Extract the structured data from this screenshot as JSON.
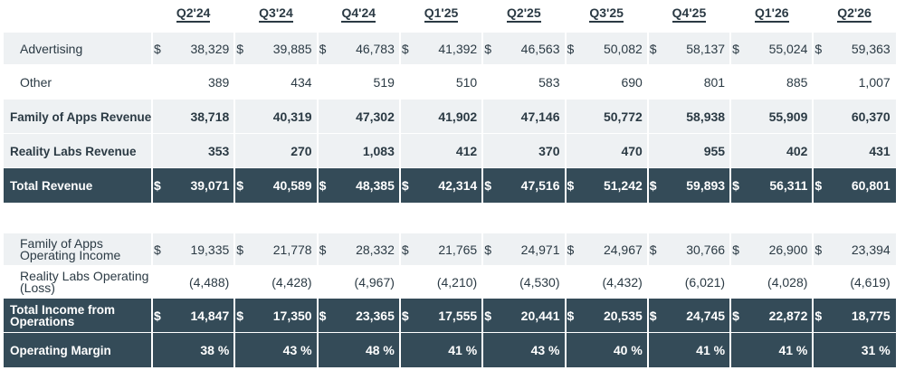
{
  "quarters": [
    "Q2'24",
    "Q3'24",
    "Q4'24",
    "Q1'25",
    "Q2'25",
    "Q3'25",
    "Q4'25",
    "Q1'26",
    "Q2'26"
  ],
  "currency_symbol": "$",
  "revenue_section": {
    "rows": [
      {
        "label": "Advertising",
        "style": "indent",
        "currency": true,
        "values": [
          "38,329",
          "39,885",
          "46,783",
          "41,392",
          "46,563",
          "50,082",
          "58,137",
          "55,024",
          "59,363"
        ]
      },
      {
        "label": "Other",
        "style": "indent",
        "currency": false,
        "values": [
          "389",
          "434",
          "519",
          "510",
          "583",
          "690",
          "801",
          "885",
          "1,007"
        ]
      },
      {
        "label": "Family of Apps Revenue",
        "style": "bold",
        "currency": false,
        "values": [
          "38,718",
          "40,319",
          "47,302",
          "41,902",
          "47,146",
          "50,772",
          "58,938",
          "55,909",
          "60,370"
        ]
      },
      {
        "label": "Reality Labs Revenue",
        "style": "bold",
        "currency": false,
        "values": [
          "353",
          "270",
          "1,083",
          "412",
          "370",
          "470",
          "955",
          "402",
          "431"
        ]
      },
      {
        "label": "Total Revenue",
        "style": "dark",
        "currency": true,
        "values": [
          "39,071",
          "40,589",
          "48,385",
          "42,314",
          "47,516",
          "51,242",
          "59,893",
          "56,311",
          "60,801"
        ]
      }
    ]
  },
  "income_section": {
    "rows": [
      {
        "label": "Family of Apps Operating Income",
        "style": "indent",
        "currency": true,
        "values": [
          "19,335",
          "21,778",
          "28,332",
          "21,765",
          "24,971",
          "24,967",
          "30,766",
          "26,900",
          "23,394"
        ]
      },
      {
        "label": "Reality Labs Operating (Loss)",
        "style": "indent",
        "currency": false,
        "values": [
          "(4,488)",
          "(4,428)",
          "(4,967)",
          "(4,210)",
          "(4,530)",
          "(4,432)",
          "(6,021)",
          "(4,028)",
          "(4,619)"
        ]
      },
      {
        "label": "Total Income from Operations",
        "style": "dark",
        "currency": true,
        "values": [
          "14,847",
          "17,350",
          "23,365",
          "17,555",
          "20,441",
          "20,535",
          "24,745",
          "22,872",
          "18,775"
        ]
      },
      {
        "label": "Operating Margin",
        "style": "dark",
        "currency": false,
        "values": [
          "38 %",
          "43 %",
          "48 %",
          "41 %",
          "43 %",
          "40 %",
          "41 %",
          "41 %",
          "31 %"
        ]
      }
    ]
  },
  "colors": {
    "dark_row": "#344b58",
    "light_row": "#eef1f3",
    "text": "#2b3a44"
  }
}
